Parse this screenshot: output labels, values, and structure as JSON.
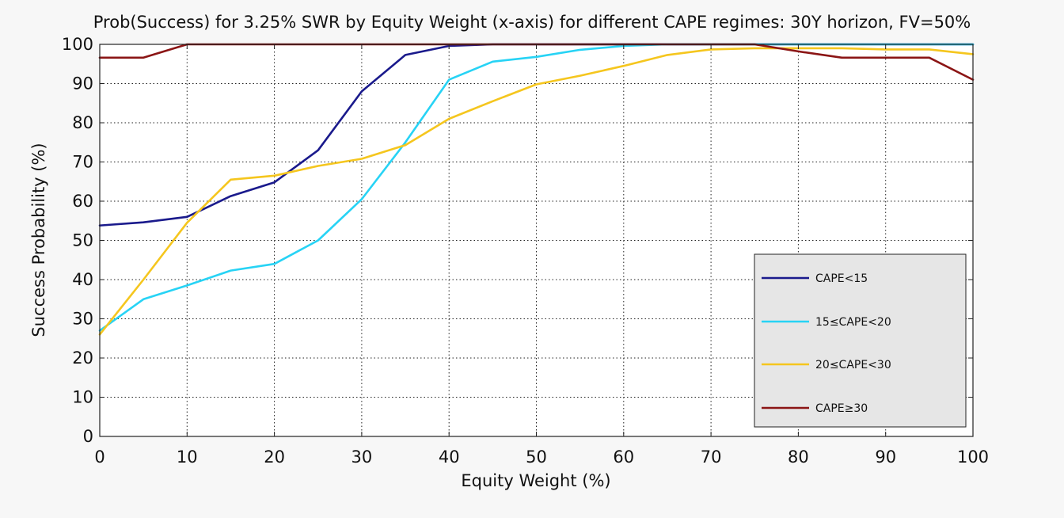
{
  "chart_data": {
    "type": "line",
    "title": "Prob(Success) for 3.25% SWR by Equity Weight (x-axis) for different CAPE regimes: 30Y horizon, FV=50%",
    "xlabel": "Equity Weight (%)",
    "ylabel": "Success Probability (%)",
    "xlim": [
      0,
      100
    ],
    "ylim": [
      0,
      100
    ],
    "xticks": [
      0,
      10,
      20,
      30,
      40,
      50,
      60,
      70,
      80,
      90,
      100
    ],
    "yticks": [
      0,
      10,
      20,
      30,
      40,
      50,
      60,
      70,
      80,
      90,
      100
    ],
    "grid": true,
    "legend_position": "lower-right",
    "x": [
      0,
      5,
      10,
      15,
      20,
      25,
      30,
      35,
      40,
      45,
      50,
      55,
      60,
      65,
      70,
      75,
      80,
      85,
      90,
      95,
      100
    ],
    "series": [
      {
        "name": "CAPE<15",
        "color": "#1a1a8c",
        "values": [
          53.8,
          54.6,
          56.0,
          61.3,
          64.8,
          73.0,
          88.0,
          97.3,
          99.6,
          100,
          100,
          100,
          100,
          100,
          100,
          100,
          100,
          100,
          100,
          100,
          100
        ]
      },
      {
        "name": "15≤CAPE<20",
        "color": "#27d3f5",
        "values": [
          27.0,
          35.0,
          38.5,
          42.3,
          44.0,
          50.0,
          60.5,
          75.0,
          91.0,
          95.6,
          96.8,
          98.6,
          99.6,
          100,
          100,
          100,
          100,
          100,
          100,
          100,
          100
        ]
      },
      {
        "name": "20≤CAPE<30",
        "color": "#f5c61e",
        "values": [
          26.0,
          40.0,
          54.5,
          65.5,
          66.5,
          69.0,
          70.8,
          74.3,
          81.0,
          85.5,
          89.8,
          92.0,
          94.5,
          97.3,
          98.7,
          99.0,
          99.0,
          99.0,
          98.7,
          98.7,
          97.5
        ]
      },
      {
        "name": "CAPE≥30",
        "color": "#8b1515",
        "values": [
          96.6,
          96.6,
          100,
          100,
          100,
          100,
          100,
          100,
          100,
          100,
          100,
          100,
          100,
          100,
          100,
          100,
          98.2,
          96.6,
          96.6,
          96.6,
          91.0
        ]
      }
    ]
  }
}
